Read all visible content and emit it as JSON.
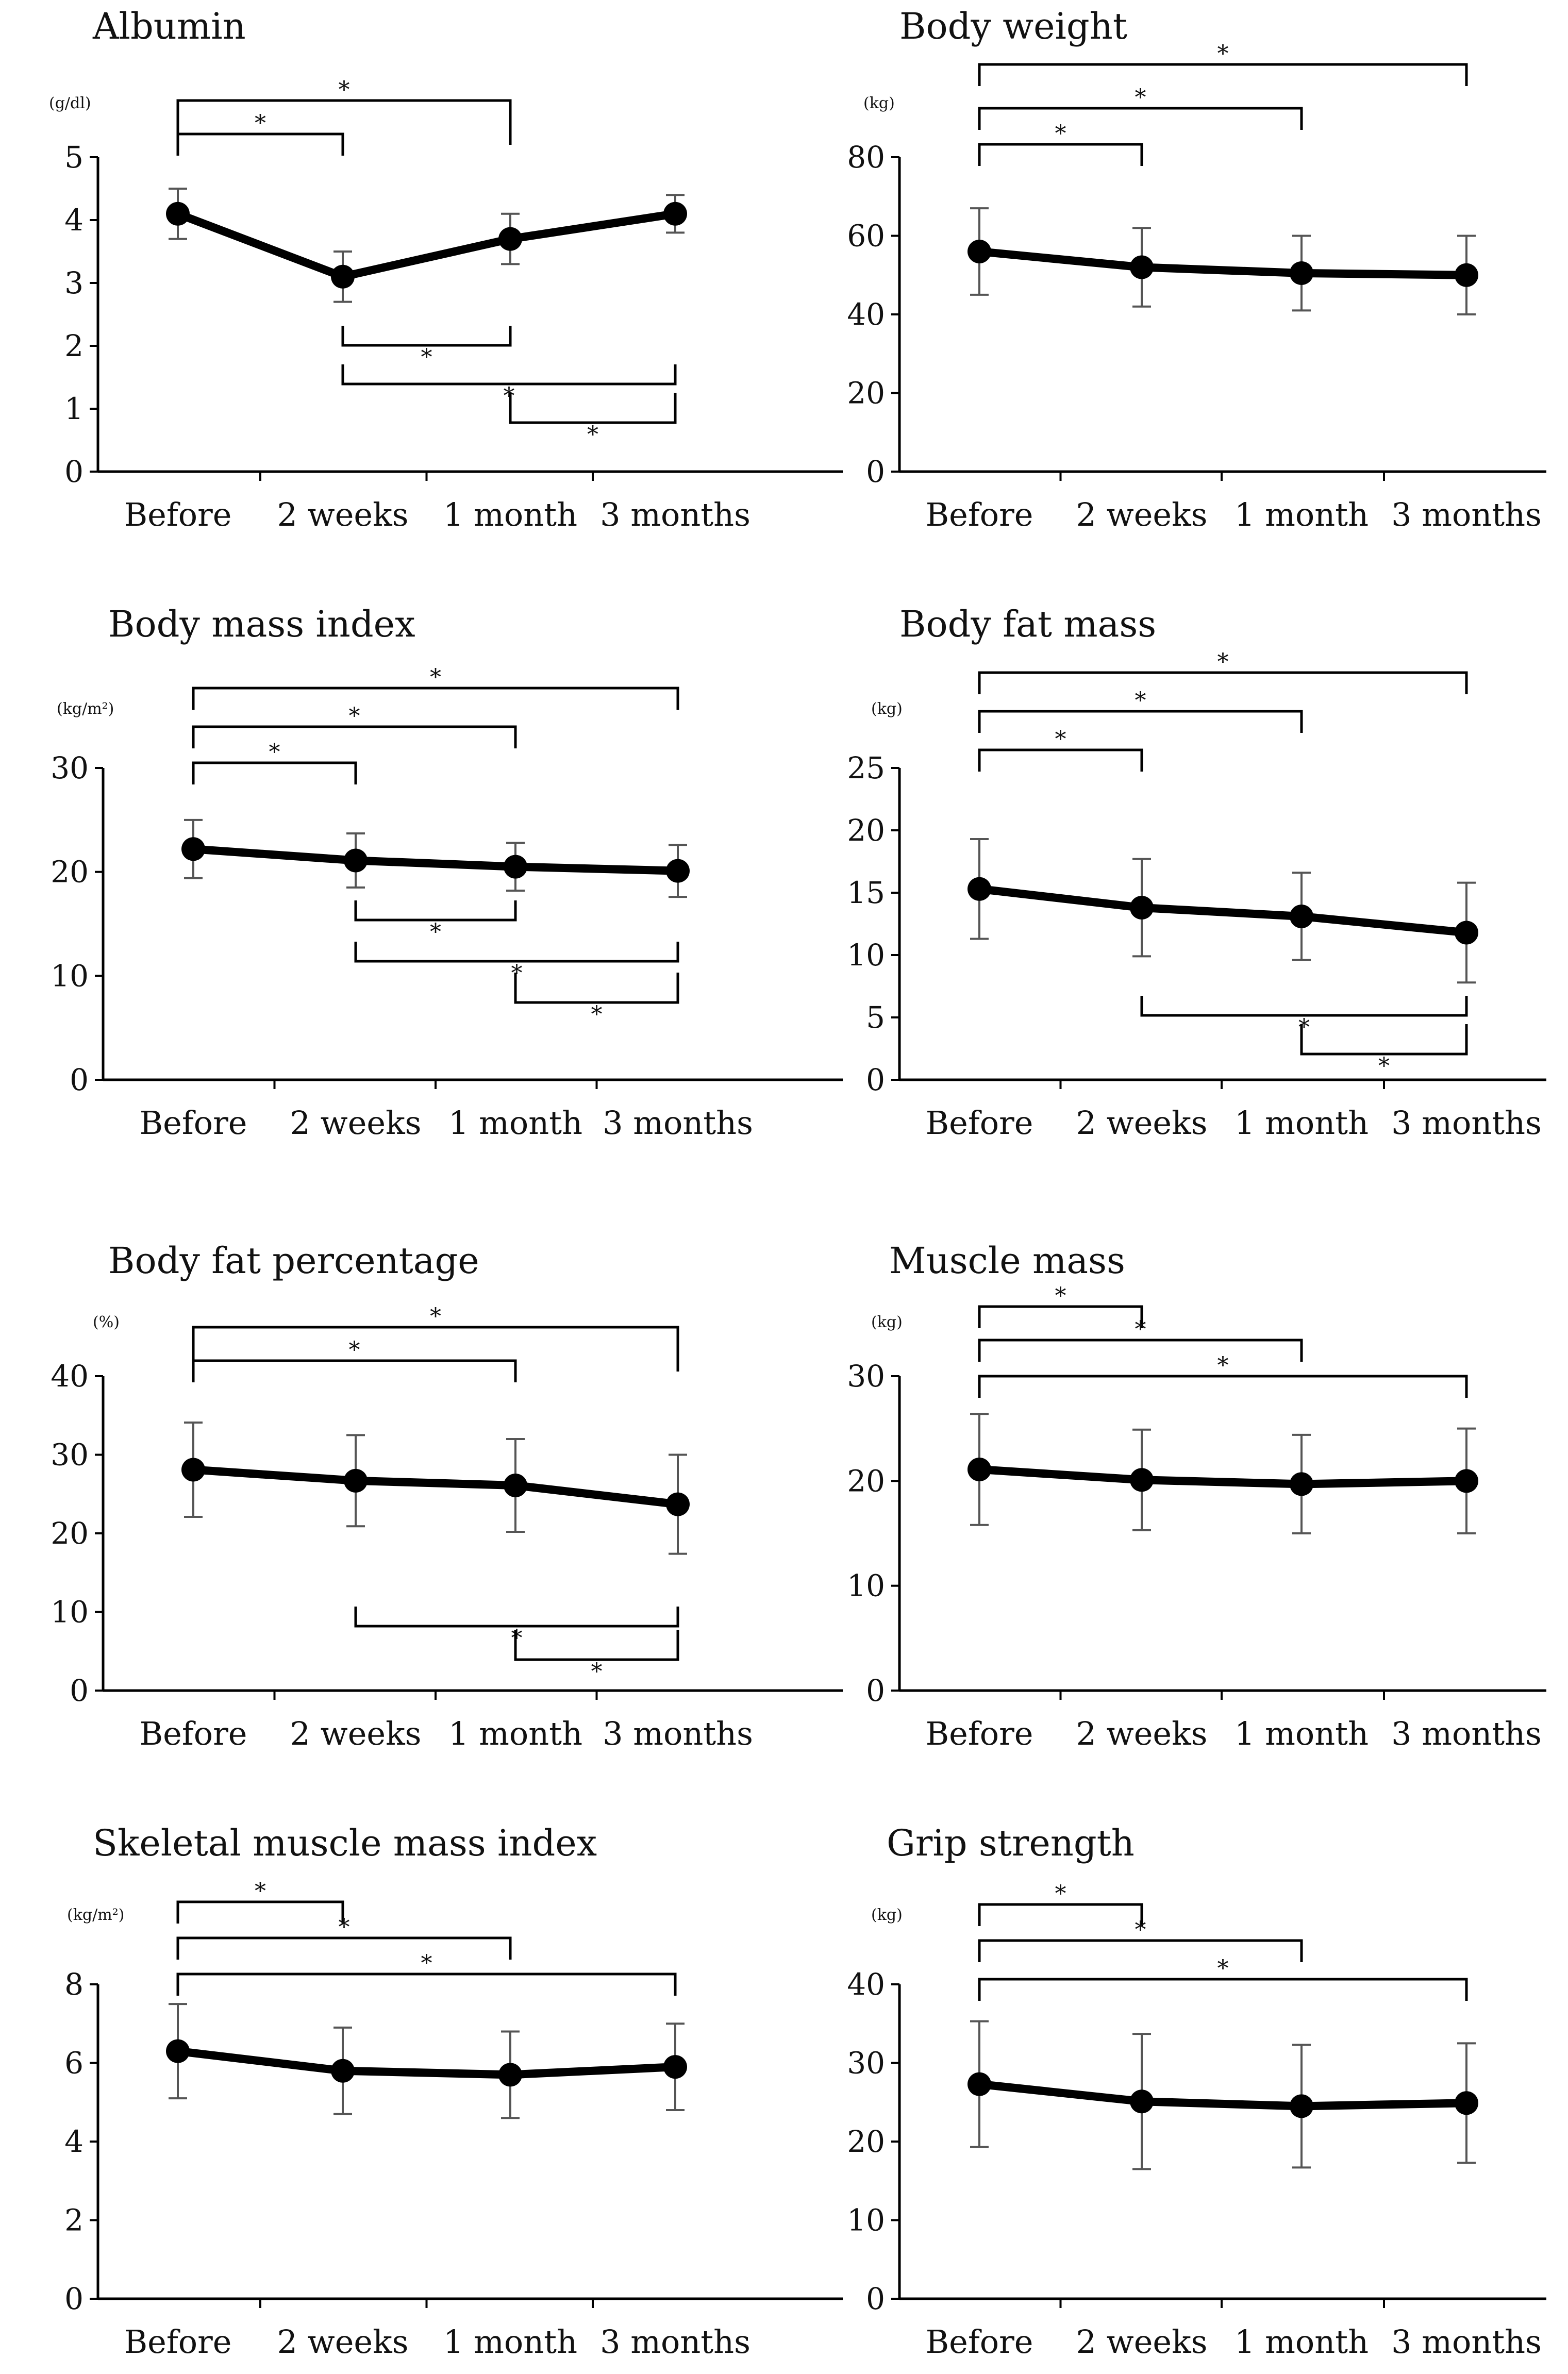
{
  "chart_data": [
    {
      "type": "line",
      "title": "Albumin",
      "unit_label": "(g/dl)",
      "categories": [
        "Before",
        "2 weeks",
        "1 month",
        "3 months"
      ],
      "values": [
        4.1,
        3.1,
        3.7,
        4.1
      ],
      "error": [
        0.4,
        0.4,
        0.4,
        0.3
      ],
      "ylim": [
        0,
        5
      ],
      "yticks": [
        0,
        1,
        2,
        3,
        4,
        5
      ],
      "ytick_labels": [
        "0",
        "1",
        "2",
        "3",
        "4",
        "5"
      ],
      "brackets": [
        {
          "from": "Before",
          "to": "1 month",
          "position": "above",
          "label": "*"
        },
        {
          "from": "Before",
          "to": "2 weeks",
          "position": "above",
          "label": "*"
        },
        {
          "from": "2 weeks",
          "to": "1 month",
          "position": "below",
          "label": "*"
        },
        {
          "from": "2 weeks",
          "to": "3 months",
          "position": "below",
          "label": "*"
        },
        {
          "from": "1 month",
          "to": "3 months",
          "position": "below",
          "label": "*"
        }
      ]
    },
    {
      "type": "line",
      "title": "Body weight",
      "unit_label": "(kg)",
      "categories": [
        "Before",
        "2 weeks",
        "1 month",
        "3 months"
      ],
      "values": [
        56,
        52,
        50.5,
        50
      ],
      "error": [
        11,
        10,
        9.5,
        10
      ],
      "ylim": [
        0,
        80
      ],
      "yticks": [
        0,
        20,
        40,
        60,
        80
      ],
      "ytick_labels": [
        "0",
        "20",
        "40",
        "60",
        "80"
      ],
      "brackets": [
        {
          "from": "Before",
          "to": "3 months",
          "position": "above",
          "label": "*"
        },
        {
          "from": "Before",
          "to": "1 month",
          "position": "above",
          "label": "*"
        },
        {
          "from": "Before",
          "to": "2 weeks",
          "position": "above",
          "label": "*"
        }
      ]
    },
    {
      "type": "line",
      "title": "Body mass index",
      "unit_label": "(kg/m²)",
      "categories": [
        "Before",
        "2 weeks",
        "1 month",
        "3 months"
      ],
      "values": [
        22.2,
        21.1,
        20.5,
        20.1
      ],
      "error": [
        2.8,
        2.6,
        2.3,
        2.5
      ],
      "ylim": [
        0,
        30
      ],
      "yticks": [
        0,
        10,
        20,
        30
      ],
      "ytick_labels": [
        "0",
        "10",
        "20",
        "30"
      ],
      "brackets": [
        {
          "from": "Before",
          "to": "3 months",
          "position": "above",
          "label": "*"
        },
        {
          "from": "Before",
          "to": "1 month",
          "position": "above",
          "label": "*"
        },
        {
          "from": "Before",
          "to": "2 weeks",
          "position": "above",
          "label": "*"
        },
        {
          "from": "2 weeks",
          "to": "1 month",
          "position": "below",
          "label": "*"
        },
        {
          "from": "2 weeks",
          "to": "3 months",
          "position": "below",
          "label": "*"
        },
        {
          "from": "1 month",
          "to": "3 months",
          "position": "below",
          "label": "*"
        }
      ]
    },
    {
      "type": "line",
      "title": "Body fat mass",
      "unit_label": "(kg)",
      "categories": [
        "Before",
        "2 weeks",
        "1 month",
        "3 months"
      ],
      "values": [
        15.3,
        13.8,
        13.1,
        11.8
      ],
      "error": [
        4,
        3.9,
        3.5,
        4
      ],
      "ylim": [
        0,
        25
      ],
      "yticks": [
        0,
        5,
        10,
        15,
        20,
        25
      ],
      "ytick_labels": [
        "0",
        "5",
        "10",
        "15",
        "20",
        "25"
      ],
      "brackets": [
        {
          "from": "Before",
          "to": "3 months",
          "position": "above",
          "label": "*"
        },
        {
          "from": "Before",
          "to": "1 month",
          "position": "above",
          "label": "*"
        },
        {
          "from": "Before",
          "to": "2 weeks",
          "position": "above",
          "label": "*"
        },
        {
          "from": "2 weeks",
          "to": "3 months",
          "position": "below",
          "label": "*"
        },
        {
          "from": "1 month",
          "to": "3 months",
          "position": "below",
          "label": "*"
        }
      ]
    },
    {
      "type": "line",
      "title": "Body fat percentage",
      "unit_label": "(%)",
      "categories": [
        "Before",
        "2 weeks",
        "1 month",
        "3 months"
      ],
      "values": [
        28.1,
        26.7,
        26.1,
        23.7
      ],
      "error": [
        6,
        5.8,
        5.9,
        6.3
      ],
      "ylim": [
        0,
        40
      ],
      "yticks": [
        0,
        10,
        20,
        30,
        40
      ],
      "ytick_labels": [
        "0",
        "10",
        "20",
        "30",
        "40"
      ],
      "brackets": [
        {
          "from": "Before",
          "to": "3 months",
          "position": "above",
          "label": "*"
        },
        {
          "from": "Before",
          "to": "1 month",
          "position": "above",
          "label": "*"
        },
        {
          "from": "2 weeks",
          "to": "3 months",
          "position": "below",
          "label": "*"
        },
        {
          "from": "1 month",
          "to": "3 months",
          "position": "below",
          "label": "*"
        }
      ]
    },
    {
      "type": "line",
      "title": "Muscle mass",
      "unit_label": "(kg)",
      "categories": [
        "Before",
        "2 weeks",
        "1 month",
        "3 months"
      ],
      "values": [
        21.1,
        20.1,
        19.7,
        20
      ],
      "error": [
        5.3,
        4.8,
        4.7,
        5
      ],
      "ylim": [
        0,
        30
      ],
      "yticks": [
        0,
        10,
        20,
        30
      ],
      "ytick_labels": [
        "0",
        "10",
        "20",
        "30"
      ],
      "brackets": [
        {
          "from": "Before",
          "to": "3 months",
          "position": "above",
          "label": "*"
        },
        {
          "from": "Before",
          "to": "1 month",
          "position": "above",
          "label": "*"
        },
        {
          "from": "Before",
          "to": "2 weeks",
          "position": "above",
          "label": "*"
        }
      ]
    },
    {
      "type": "line",
      "title": "Skeletal muscle mass index",
      "unit_label": "(kg/m²)",
      "categories": [
        "Before",
        "2 weeks",
        "1 month",
        "3 months"
      ],
      "values": [
        6.3,
        5.8,
        5.7,
        5.9
      ],
      "error": [
        1.2,
        1.1,
        1.1,
        1.1
      ],
      "ylim": [
        0,
        8
      ],
      "yticks": [
        0,
        2,
        4,
        6,
        8
      ],
      "ytick_labels": [
        "0",
        "2",
        "4",
        "6",
        "8"
      ],
      "brackets": [
        {
          "from": "Before",
          "to": "3 months",
          "position": "above",
          "label": "*"
        },
        {
          "from": "Before",
          "to": "1 month",
          "position": "above",
          "label": "*"
        },
        {
          "from": "Before",
          "to": "2 weeks",
          "position": "above",
          "label": "*"
        }
      ]
    },
    {
      "type": "line",
      "title": "Grip strength",
      "unit_label": "(kg)",
      "categories": [
        "Before",
        "2 weeks",
        "1 month",
        "3 months"
      ],
      "values": [
        27.3,
        25.1,
        24.5,
        24.9
      ],
      "error": [
        8,
        8.6,
        7.8,
        7.6
      ],
      "ylim": [
        0,
        40
      ],
      "yticks": [
        0,
        10,
        20,
        30,
        40
      ],
      "ytick_labels": [
        "0",
        "10",
        "20",
        "30",
        "40"
      ],
      "brackets": [
        {
          "from": "Before",
          "to": "3 months",
          "position": "above",
          "label": "*"
        },
        {
          "from": "Before",
          "to": "1 month",
          "position": "above",
          "label": "*"
        },
        {
          "from": "Before",
          "to": "2 weeks",
          "position": "above",
          "label": "*"
        }
      ]
    }
  ]
}
